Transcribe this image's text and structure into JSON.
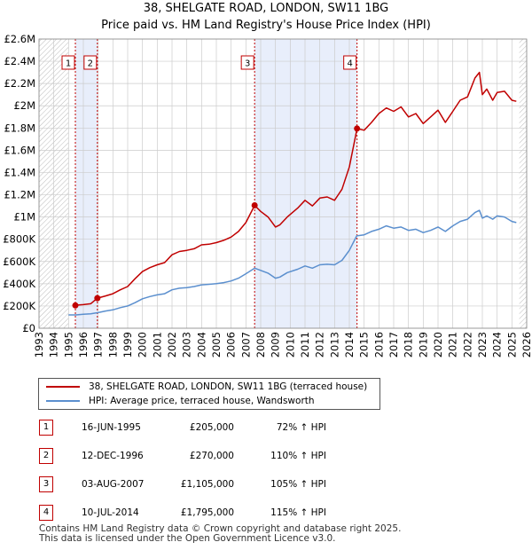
{
  "chart_data": {
    "type": "line",
    "title": "38, SHELGATE ROAD, LONDON, SW11 1BG",
    "subtitle": "Price paid vs. HM Land Registry's House Price Index (HPI)",
    "xlim": [
      1993,
      2026
    ],
    "ylim": [
      0,
      2600000
    ],
    "y_ticks": [
      0,
      200000,
      400000,
      600000,
      800000,
      1000000,
      1200000,
      1400000,
      1600000,
      1800000,
      2000000,
      2200000,
      2400000,
      2600000
    ],
    "y_tick_labels": [
      "£0",
      "£200K",
      "£400K",
      "£600K",
      "£800K",
      "£1M",
      "£1.2M",
      "£1.4M",
      "£1.6M",
      "£1.8M",
      "£2M",
      "£2.2M",
      "£2.4M",
      "£2.6M"
    ],
    "x_ticks": [
      1993,
      1994,
      1995,
      1996,
      1997,
      1998,
      1999,
      2000,
      2001,
      2002,
      2003,
      2004,
      2005,
      2006,
      2007,
      2008,
      2009,
      2010,
      2011,
      2012,
      2013,
      2014,
      2015,
      2016,
      2017,
      2018,
      2019,
      2020,
      2021,
      2022,
      2023,
      2024,
      2025,
      2026
    ],
    "x_tick_labels": [
      "1993",
      "1994",
      "1995",
      "1996",
      "1997",
      "1998",
      "1999",
      "2000",
      "2001",
      "2002",
      "2003",
      "2004",
      "2005",
      "2006",
      "2007",
      "2008",
      "2009",
      "2010",
      "2011",
      "2012",
      "2013",
      "2014",
      "2015",
      "2016",
      "2017",
      "2018",
      "2019",
      "2020",
      "2021",
      "2022",
      "2023",
      "2024",
      "2025",
      "2026"
    ],
    "data_start": 1995.0,
    "data_end": 2025.5,
    "shaded_bands": [
      [
        1995.46,
        1996.95
      ],
      [
        2007.59,
        2014.52
      ]
    ],
    "series": [
      {
        "name": "38, SHELGATE ROAD, LONDON, SW11 1BG (terraced house)",
        "color": "#c00000",
        "x": [
          1995.46,
          1995.7,
          1996.0,
          1996.5,
          1996.95,
          1997.5,
          1998.0,
          1998.5,
          1999.0,
          1999.5,
          2000.0,
          2000.5,
          2001.0,
          2001.5,
          2002.0,
          2002.5,
          2003.0,
          2003.5,
          2004.0,
          2004.5,
          2005.0,
          2005.5,
          2006.0,
          2006.5,
          2007.0,
          2007.59,
          2008.0,
          2008.5,
          2009.0,
          2009.3,
          2009.8,
          2010.5,
          2011.0,
          2011.5,
          2012.0,
          2012.5,
          2013.0,
          2013.5,
          2014.0,
          2014.52,
          2015.0,
          2015.5,
          2016.0,
          2016.5,
          2017.0,
          2017.5,
          2018.0,
          2018.5,
          2019.0,
          2019.5,
          2020.0,
          2020.5,
          2021.0,
          2021.5,
          2022.0,
          2022.5,
          2022.8,
          2023.0,
          2023.3,
          2023.7,
          2024.0,
          2024.5,
          2025.0,
          2025.3
        ],
        "values": [
          205000,
          210000,
          212000,
          220000,
          270000,
          290000,
          310000,
          345000,
          375000,
          445000,
          510000,
          545000,
          570000,
          590000,
          660000,
          690000,
          700000,
          715000,
          750000,
          755000,
          770000,
          790000,
          820000,
          870000,
          950000,
          1105000,
          1050000,
          1000000,
          910000,
          930000,
          1000000,
          1080000,
          1150000,
          1100000,
          1170000,
          1180000,
          1150000,
          1250000,
          1450000,
          1795000,
          1780000,
          1850000,
          1930000,
          1980000,
          1950000,
          1990000,
          1900000,
          1930000,
          1840000,
          1900000,
          1960000,
          1850000,
          1950000,
          2050000,
          2080000,
          2250000,
          2300000,
          2100000,
          2150000,
          2050000,
          2120000,
          2130000,
          2050000,
          2040000
        ]
      },
      {
        "name": "HPI: Average price, terraced house, Wandsworth",
        "color": "#5b8fce",
        "x": [
          1995.0,
          1995.5,
          1996.0,
          1996.5,
          1997.0,
          1997.5,
          1998.0,
          1998.5,
          1999.0,
          1999.5,
          2000.0,
          2000.5,
          2001.0,
          2001.5,
          2002.0,
          2002.5,
          2003.0,
          2003.5,
          2004.0,
          2004.5,
          2005.0,
          2005.5,
          2006.0,
          2006.5,
          2007.0,
          2007.6,
          2008.0,
          2008.5,
          2009.0,
          2009.3,
          2009.8,
          2010.5,
          2011.0,
          2011.5,
          2012.0,
          2012.5,
          2013.0,
          2013.5,
          2014.0,
          2014.5,
          2015.0,
          2015.5,
          2016.0,
          2016.5,
          2017.0,
          2017.5,
          2018.0,
          2018.5,
          2019.0,
          2019.5,
          2020.0,
          2020.5,
          2021.0,
          2021.5,
          2022.0,
          2022.5,
          2022.8,
          2023.0,
          2023.3,
          2023.7,
          2024.0,
          2024.5,
          2025.0,
          2025.3
        ],
        "values": [
          120000,
          120000,
          125000,
          130000,
          140000,
          155000,
          165000,
          185000,
          200000,
          230000,
          265000,
          285000,
          300000,
          310000,
          345000,
          360000,
          365000,
          375000,
          390000,
          395000,
          400000,
          410000,
          425000,
          450000,
          490000,
          540000,
          520000,
          495000,
          450000,
          460000,
          500000,
          530000,
          560000,
          540000,
          570000,
          575000,
          570000,
          610000,
          700000,
          830000,
          840000,
          870000,
          890000,
          920000,
          900000,
          910000,
          880000,
          890000,
          860000,
          880000,
          910000,
          870000,
          920000,
          960000,
          980000,
          1040000,
          1060000,
          990000,
          1010000,
          980000,
          1010000,
          1000000,
          960000,
          950000
        ]
      }
    ],
    "sales": [
      {
        "label": "1",
        "x": 1995.46,
        "y": 205000
      },
      {
        "label": "2",
        "x": 1996.95,
        "y": 270000
      },
      {
        "label": "3",
        "x": 2007.59,
        "y": 1105000
      },
      {
        "label": "4",
        "x": 2014.52,
        "y": 1795000
      }
    ]
  },
  "legend": {
    "red_label": "38, SHELGATE ROAD, LONDON, SW11 1BG (terraced house)",
    "blue_label": "HPI: Average price, terraced house, Wandsworth"
  },
  "transactions": [
    {
      "num": "1",
      "date": "16-JUN-1995",
      "price": "£205,000",
      "hpi": "72% ↑ HPI"
    },
    {
      "num": "2",
      "date": "12-DEC-1996",
      "price": "£270,000",
      "hpi": "110% ↑ HPI"
    },
    {
      "num": "3",
      "date": "03-AUG-2007",
      "price": "£1,105,000",
      "hpi": "105% ↑ HPI"
    },
    {
      "num": "4",
      "date": "10-JUL-2014",
      "price": "£1,795,000",
      "hpi": "115% ↑ HPI"
    }
  ],
  "footer": {
    "line1": "Contains HM Land Registry data © Crown copyright and database right 2025.",
    "line2": "This data is licensed under the Open Government Licence v3.0."
  },
  "colors": {
    "red": "#c00000",
    "blue": "#5b8fce",
    "band": "#e8eefb",
    "grid": "#cccccc"
  }
}
